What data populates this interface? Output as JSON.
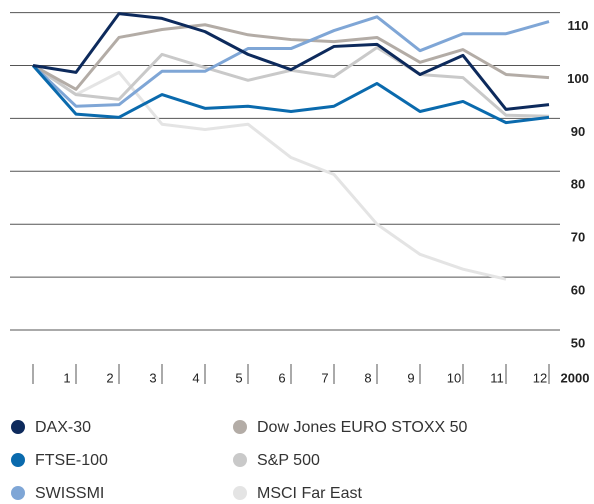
{
  "chart_data": {
    "type": "line",
    "categories": [
      null,
      "1",
      "2",
      "3",
      "4",
      "5",
      "6",
      "7",
      "8",
      "9",
      "10",
      "11",
      "12"
    ],
    "x_axis_end_label": "2000",
    "ylim": [
      50,
      112
    ],
    "yticks": [
      50,
      60,
      70,
      80,
      90,
      100,
      110
    ],
    "grid": true,
    "y_axis_side": "right",
    "legend": "bottom",
    "series": [
      {
        "name": "DAX-30",
        "color": "#0d2a5c",
        "values": [
          100,
          98.7,
          109.8,
          108.9,
          106.4,
          102.1,
          99.2,
          103.6,
          104.0,
          98.3,
          101.9,
          91.7,
          92.6
        ]
      },
      {
        "name": "FTSE-100",
        "color": "#0a6aad",
        "values": [
          100,
          90.8,
          90.2,
          94.5,
          91.9,
          92.3,
          91.3,
          92.3,
          96.6,
          91.3,
          93.2,
          89.2,
          90.2
        ]
      },
      {
        "name": "SWISSMI",
        "color": "#7fa6d6",
        "values": [
          100,
          92.3,
          92.6,
          98.9,
          98.9,
          103.2,
          103.2,
          106.6,
          109.2,
          102.8,
          106.0,
          106.0,
          108.3
        ]
      },
      {
        "name": "Dow Jones EURO STOXX 50",
        "color": "#b3aca6",
        "values": [
          100,
          95.5,
          105.3,
          106.8,
          107.7,
          105.8,
          104.9,
          104.5,
          105.3,
          100.6,
          103.0,
          98.3,
          97.7
        ]
      },
      {
        "name": "S&P 500",
        "color": "#c9c9c9",
        "values": [
          100,
          94.5,
          93.6,
          102.1,
          99.6,
          97.2,
          99.1,
          97.9,
          103.4,
          98.3,
          97.7,
          90.6,
          90.4
        ]
      },
      {
        "name": "MSCI Far East",
        "color": "#e4e4e4",
        "values": [
          100,
          94.5,
          98.7,
          88.9,
          87.9,
          88.9,
          82.6,
          79.4,
          70.0,
          64.3,
          61.5,
          59.6,
          null
        ]
      }
    ]
  }
}
